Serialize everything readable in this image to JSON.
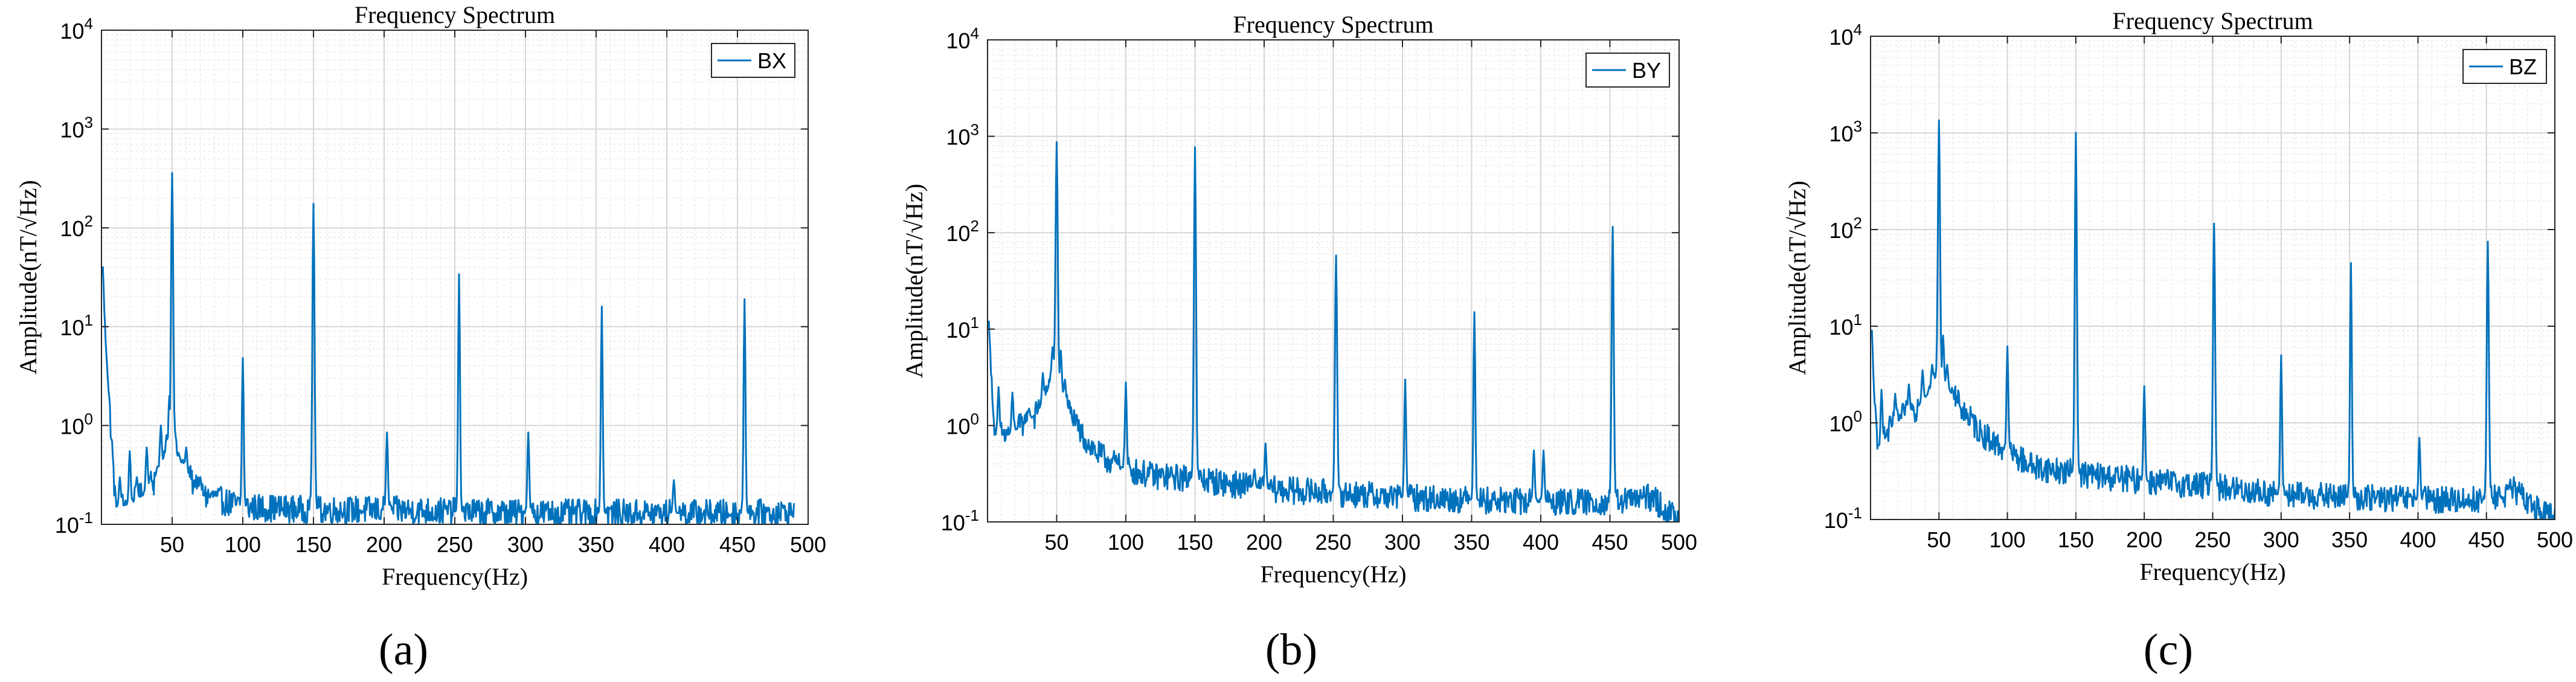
{
  "chart_data": [
    {
      "type": "line",
      "title": "Frequency Spectrum",
      "xlabel": "Frequency(Hz)",
      "ylabel": "Amplitude(nT/√Hz)",
      "yscale": "log",
      "xlim": [
        0,
        500
      ],
      "ylim": [
        0.1,
        10000
      ],
      "xticks": [
        50,
        100,
        150,
        200,
        250,
        300,
        350,
        400,
        450,
        500
      ],
      "yticks": [
        {
          "base": "10",
          "exp": "-1"
        },
        {
          "base": "10",
          "exp": "0"
        },
        {
          "base": "10",
          "exp": "1"
        },
        {
          "base": "10",
          "exp": "2"
        },
        {
          "base": "10",
          "exp": "3"
        },
        {
          "base": "10",
          "exp": "4"
        }
      ],
      "legend": "BX",
      "panel_label": "(a)",
      "grid": true,
      "color": "#0072BD",
      "baseline": [
        [
          1,
          20
        ],
        [
          10,
          0.15
        ],
        [
          20,
          0.16
        ],
        [
          30,
          0.2
        ],
        [
          40,
          0.35
        ],
        [
          50,
          0.6
        ],
        [
          70,
          0.2
        ],
        [
          100,
          0.15
        ],
        [
          150,
          0.14
        ],
        [
          200,
          0.14
        ],
        [
          300,
          0.13
        ],
        [
          400,
          0.13
        ],
        [
          490,
          0.13
        ]
      ],
      "peaks": [
        [
          1,
          40
        ],
        [
          13,
          0.3
        ],
        [
          20,
          0.55
        ],
        [
          25,
          0.3
        ],
        [
          32,
          0.6
        ],
        [
          37,
          0.2
        ],
        [
          42,
          1.0
        ],
        [
          46,
          0.8
        ],
        [
          48,
          2.0
        ],
        [
          50,
          360
        ],
        [
          52,
          0.9
        ],
        [
          55,
          0.5
        ],
        [
          60,
          0.6
        ],
        [
          70,
          0.3
        ],
        [
          80,
          0.2
        ],
        [
          100,
          4.8
        ],
        [
          150,
          175
        ],
        [
          202,
          0.85
        ],
        [
          253,
          34
        ],
        [
          302,
          0.85
        ],
        [
          354,
          16
        ],
        [
          405,
          0.28
        ],
        [
          455,
          19
        ]
      ],
      "x_end": 490
    },
    {
      "type": "line",
      "title": "Frequency Spectrum",
      "xlabel": "Frequency(Hz)",
      "ylabel": "Amplitude(nT/√Hz)",
      "yscale": "log",
      "xlim": [
        0,
        500
      ],
      "ylim": [
        0.1,
        10000
      ],
      "xticks": [
        50,
        100,
        150,
        200,
        250,
        300,
        350,
        400,
        450,
        500
      ],
      "yticks": [
        {
          "base": "10",
          "exp": "-1"
        },
        {
          "base": "10",
          "exp": "0"
        },
        {
          "base": "10",
          "exp": "1"
        },
        {
          "base": "10",
          "exp": "2"
        },
        {
          "base": "10",
          "exp": "3"
        },
        {
          "base": "10",
          "exp": "4"
        }
      ],
      "legend": "BY",
      "panel_label": "(b)",
      "grid": true,
      "color": "#0072BD",
      "baseline": [
        [
          1,
          8
        ],
        [
          5,
          0.8
        ],
        [
          15,
          0.8
        ],
        [
          25,
          1.0
        ],
        [
          35,
          1.3
        ],
        [
          42,
          2.0
        ],
        [
          48,
          4.0
        ],
        [
          55,
          2.0
        ],
        [
          65,
          0.9
        ],
        [
          80,
          0.5
        ],
        [
          100,
          0.35
        ],
        [
          120,
          0.3
        ],
        [
          150,
          0.28
        ],
        [
          200,
          0.22
        ],
        [
          250,
          0.2
        ],
        [
          300,
          0.18
        ],
        [
          350,
          0.17
        ],
        [
          400,
          0.16
        ],
        [
          450,
          0.16
        ],
        [
          480,
          0.18
        ],
        [
          500,
          0.1
        ]
      ],
      "peaks": [
        [
          1,
          12
        ],
        [
          8,
          2.5
        ],
        [
          18,
          2.2
        ],
        [
          30,
          1.5
        ],
        [
          40,
          3.5
        ],
        [
          47,
          6.5
        ],
        [
          50,
          870
        ],
        [
          53,
          6.0
        ],
        [
          56,
          3.0
        ],
        [
          62,
          1.0
        ],
        [
          100,
          2.8
        ],
        [
          150,
          770
        ],
        [
          193,
          0.35
        ],
        [
          201,
          0.65
        ],
        [
          252,
          58
        ],
        [
          302,
          3.0
        ],
        [
          352,
          15
        ],
        [
          395,
          0.55
        ],
        [
          402,
          0.55
        ],
        [
          452,
          115
        ]
      ],
      "x_end": 500
    },
    {
      "type": "line",
      "title": "Frequency Spectrum",
      "xlabel": "Frequency(Hz)",
      "ylabel": "Amplitude(nT/√Hz)",
      "yscale": "log",
      "xlim": [
        0,
        500
      ],
      "ylim": [
        0.1,
        10000
      ],
      "xticks": [
        50,
        100,
        150,
        200,
        250,
        300,
        350,
        400,
        450,
        500
      ],
      "yticks": [
        {
          "base": "10",
          "exp": "-1"
        },
        {
          "base": "10",
          "exp": "0"
        },
        {
          "base": "10",
          "exp": "1"
        },
        {
          "base": "10",
          "exp": "2"
        },
        {
          "base": "10",
          "exp": "3"
        },
        {
          "base": "10",
          "exp": "4"
        }
      ],
      "legend": "BZ",
      "panel_label": "(c)",
      "grid": true,
      "color": "#0072BD",
      "baseline": [
        [
          1,
          5
        ],
        [
          5,
          0.5
        ],
        [
          15,
          0.9
        ],
        [
          25,
          1.2
        ],
        [
          35,
          1.5
        ],
        [
          42,
          2.0
        ],
        [
          48,
          3.0
        ],
        [
          55,
          2.5
        ],
        [
          65,
          1.5
        ],
        [
          80,
          0.8
        ],
        [
          100,
          0.5
        ],
        [
          120,
          0.35
        ],
        [
          150,
          0.3
        ],
        [
          200,
          0.25
        ],
        [
          250,
          0.22
        ],
        [
          300,
          0.18
        ],
        [
          350,
          0.17
        ],
        [
          400,
          0.16
        ],
        [
          450,
          0.16
        ],
        [
          470,
          0.2
        ],
        [
          490,
          0.12
        ],
        [
          500,
          0.1
        ]
      ],
      "peaks": [
        [
          1,
          9
        ],
        [
          8,
          2.2
        ],
        [
          18,
          2.0
        ],
        [
          28,
          2.5
        ],
        [
          38,
          3.5
        ],
        [
          45,
          4.0
        ],
        [
          50,
          1350
        ],
        [
          53,
          8.0
        ],
        [
          56,
          4.0
        ],
        [
          62,
          1.5
        ],
        [
          100,
          6.2
        ],
        [
          150,
          1000
        ],
        [
          200,
          2.4
        ],
        [
          251,
          115
        ],
        [
          300,
          5.0
        ],
        [
          351,
          45
        ],
        [
          401,
          0.7
        ],
        [
          451,
          75
        ]
      ],
      "x_end": 500
    }
  ]
}
